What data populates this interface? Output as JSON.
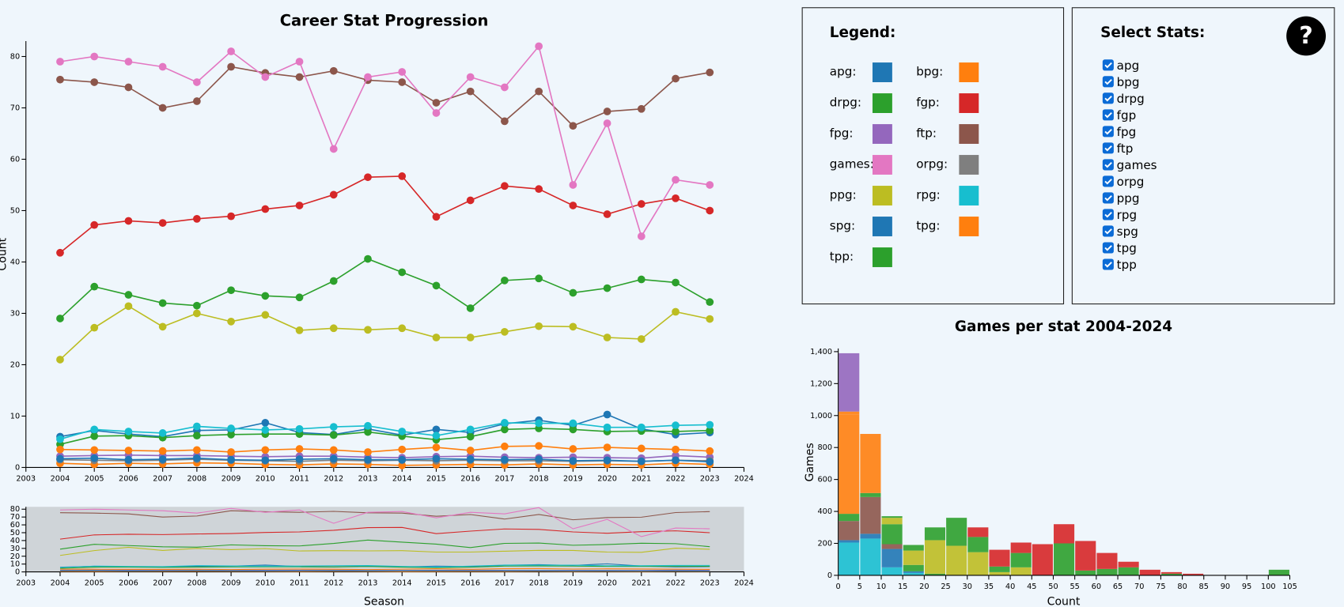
{
  "chart_data": [
    {
      "type": "line",
      "title": "Career Stat Progression",
      "y_label": "Count",
      "xlim": [
        2003,
        2024
      ],
      "xticks": [
        2003,
        2004,
        2005,
        2006,
        2007,
        2008,
        2009,
        2010,
        2011,
        2012,
        2013,
        2014,
        2015,
        2016,
        2017,
        2018,
        2019,
        2020,
        2021,
        2022,
        2023,
        2024
      ],
      "ylim": [
        0,
        83
      ],
      "yticks": [
        0,
        10,
        20,
        30,
        40,
        50,
        60,
        70,
        80
      ],
      "x": [
        2004,
        2005,
        2006,
        2007,
        2008,
        2009,
        2010,
        2011,
        2012,
        2013,
        2014,
        2015,
        2016,
        2017,
        2018,
        2019,
        2020,
        2021,
        2022,
        2023
      ],
      "series": [
        {
          "name": "apg",
          "color": "#1f77b4",
          "values": [
            6,
            7.2,
            6.5,
            6,
            7.2,
            7.3,
            8.7,
            6.8,
            6.4,
            7.5,
            6.3,
            7.4,
            6.8,
            8.5,
            9.2,
            8.2,
            10.3,
            7.5,
            6.4,
            6.8
          ]
        },
        {
          "name": "bpg",
          "color": "#ff7f0e",
          "values": [
            0.8,
            0.6,
            0.8,
            0.7,
            0.9,
            0.8,
            0.6,
            0.5,
            0.7,
            0.6,
            0.4,
            0.5,
            0.6,
            0.5,
            0.7,
            0.5,
            0.6,
            0.5,
            0.8,
            0.6
          ]
        },
        {
          "name": "drpg",
          "color": "#2ca02c",
          "values": [
            4.5,
            6.1,
            6.2,
            5.8,
            6.2,
            6.4,
            6.5,
            6.5,
            6.3,
            6.9,
            6.1,
            5.4,
            6,
            7.4,
            7.6,
            7.4,
            7,
            7.1,
            7,
            7.2
          ]
        },
        {
          "name": "fgp",
          "color": "#d62728",
          "values": [
            41.8,
            47.2,
            48,
            47.6,
            48.4,
            48.9,
            50.3,
            51,
            53.1,
            56.5,
            56.7,
            48.8,
            52,
            54.8,
            54.2,
            51,
            49.3,
            51.3,
            52.4,
            50
          ]
        },
        {
          "name": "fpg",
          "color": "#9467bd",
          "values": [
            2.2,
            2.3,
            2.4,
            2.3,
            2.3,
            2.2,
            2.1,
            2.2,
            2.2,
            2,
            1.9,
            2.1,
            2.2,
            2,
            1.9,
            2,
            1.9,
            1.8,
            2.3,
            2
          ]
        },
        {
          "name": "ftp",
          "color": "#8c564b",
          "values": [
            75.5,
            75,
            74,
            70,
            71.3,
            78,
            76.8,
            76,
            77.2,
            75.4,
            75,
            71,
            73.2,
            67.4,
            73.2,
            66.5,
            69.3,
            69.8,
            75.7,
            76.9
          ]
        },
        {
          "name": "games",
          "color": "#e377c2",
          "values": [
            79,
            80,
            79,
            78,
            75,
            81,
            76,
            79,
            62,
            76,
            77,
            69,
            76,
            74,
            82,
            55,
            67,
            45,
            56,
            55
          ]
        },
        {
          "name": "orpg",
          "color": "#7f7f7f",
          "values": [
            1.5,
            1.4,
            1.3,
            1.4,
            1.6,
            1.4,
            1.3,
            1.2,
            1.4,
            1.3,
            1.4,
            1.3,
            1.4,
            1.3,
            1.3,
            1.2,
            1.3,
            1.2,
            1.4,
            1.3
          ]
        },
        {
          "name": "ppg",
          "color": "#bcbd22",
          "values": [
            21,
            27.2,
            31.4,
            27.4,
            30,
            28.4,
            29.7,
            26.7,
            27.1,
            26.8,
            27.1,
            25.3,
            25.3,
            26.4,
            27.5,
            27.4,
            25.3,
            25,
            30.3,
            28.9
          ]
        },
        {
          "name": "rpg",
          "color": "#17becf",
          "values": [
            5.5,
            7.4,
            7,
            6.7,
            8,
            7.6,
            7.3,
            7.5,
            7.9,
            8.1,
            7,
            6.2,
            7.4,
            8.7,
            8.6,
            8.6,
            7.8,
            7.8,
            8.2,
            8.3
          ]
        },
        {
          "name": "spg",
          "color": "#1f77b4",
          "values": [
            1.7,
            1.8,
            1.5,
            1.6,
            1.8,
            1.5,
            1.4,
            1.6,
            1.7,
            1.5,
            1.5,
            1.7,
            1.6,
            1.5,
            1.6,
            1.3,
            1.4,
            1.2,
            1.4,
            1.1
          ]
        },
        {
          "name": "tpg",
          "color": "#ff7f0e",
          "values": [
            3.5,
            3.4,
            3.3,
            3.2,
            3.4,
            3,
            3.4,
            3.6,
            3.4,
            3,
            3.5,
            3.9,
            3.3,
            4.1,
            4.2,
            3.6,
            3.9,
            3.7,
            3.5,
            3.2
          ]
        },
        {
          "name": "tpp",
          "color": "#2ca02c",
          "values": [
            29,
            35.2,
            33.6,
            32,
            31.5,
            34.5,
            33.4,
            33.1,
            36.3,
            40.6,
            38,
            35.4,
            31,
            36.4,
            36.8,
            34,
            34.9,
            36.6,
            36,
            32.2
          ]
        }
      ]
    },
    {
      "type": "line",
      "x_label": "Season",
      "xlim": [
        2003,
        2024
      ],
      "xticks": [
        2003,
        2004,
        2005,
        2006,
        2007,
        2008,
        2009,
        2010,
        2011,
        2012,
        2013,
        2014,
        2015,
        2016,
        2017,
        2018,
        2019,
        2020,
        2021,
        2022,
        2023,
        2024
      ],
      "ylim": [
        0,
        83
      ],
      "yticks": [
        0,
        10,
        20,
        30,
        40,
        50,
        60,
        70,
        80
      ]
    },
    {
      "type": "histogram",
      "title": "Games per stat 2004-2024",
      "x_label": "Count",
      "y_label": "Games",
      "bins": [
        0,
        5,
        10,
        15,
        20,
        25,
        30,
        35,
        40,
        45,
        50,
        55,
        60,
        65,
        70,
        75,
        80,
        85,
        90,
        95,
        100,
        105
      ],
      "xlim": [
        0,
        105
      ],
      "xticks": [
        0,
        5,
        10,
        15,
        20,
        25,
        30,
        35,
        40,
        45,
        50,
        55,
        60,
        65,
        70,
        75,
        80,
        85,
        90,
        95,
        100,
        105
      ],
      "ylim": [
        0,
        1420
      ],
      "yticks": [
        0,
        200,
        400,
        600,
        800,
        {
          "value": 1000,
          "label": "1,000"
        },
        {
          "value": 1200,
          "label": "1,200"
        },
        {
          "value": 1400,
          "label": "1,400"
        }
      ],
      "series": [
        {
          "name": "rpg",
          "color": "#17becf",
          "values": [
            205,
            230,
            50,
            15,
            0,
            0,
            0,
            0,
            0,
            0,
            0,
            0,
            0,
            0,
            0,
            0,
            0,
            0,
            0,
            0,
            0
          ]
        },
        {
          "name": "apg",
          "color": "#1f77b4",
          "values": [
            15,
            30,
            115,
            10,
            0,
            0,
            0,
            0,
            0,
            0,
            0,
            0,
            0,
            0,
            0,
            0,
            0,
            0,
            0,
            0,
            0
          ]
        },
        {
          "name": "orpg",
          "color": "#8c564b",
          "values": [
            120,
            230,
            30,
            0,
            0,
            0,
            0,
            0,
            0,
            0,
            0,
            0,
            0,
            0,
            0,
            0,
            0,
            0,
            0,
            0,
            0
          ]
        },
        {
          "name": "drpg",
          "color": "#2ca02c",
          "values": [
            45,
            25,
            125,
            40,
            10,
            0,
            0,
            0,
            0,
            0,
            0,
            0,
            0,
            0,
            0,
            0,
            0,
            0,
            0,
            0,
            0
          ]
        },
        {
          "name": "bpg",
          "color": "#ff7f0e",
          "values": [
            620,
            0,
            0,
            0,
            0,
            0,
            0,
            0,
            0,
            0,
            0,
            0,
            0,
            0,
            0,
            0,
            0,
            0,
            0,
            0,
            0
          ]
        },
        {
          "name": "tpg",
          "color": "#ff7f0e",
          "values": [
            20,
            370,
            0,
            0,
            0,
            0,
            0,
            0,
            0,
            0,
            0,
            0,
            0,
            0,
            0,
            0,
            0,
            0,
            0,
            0,
            0
          ]
        },
        {
          "name": "fpg",
          "color": "#9467bd",
          "values": [
            365,
            0,
            0,
            0,
            0,
            0,
            0,
            0,
            0,
            0,
            0,
            0,
            0,
            0,
            0,
            0,
            0,
            0,
            0,
            0,
            0
          ]
        },
        {
          "name": "ppg",
          "color": "#bcbd22",
          "values": [
            0,
            0,
            40,
            90,
            210,
            185,
            145,
            20,
            50,
            0,
            0,
            0,
            0,
            0,
            0,
            0,
            0,
            0,
            0,
            0,
            0
          ]
        },
        {
          "name": "tpp",
          "color": "#2ca02c",
          "values": [
            0,
            0,
            10,
            35,
            80,
            175,
            95,
            35,
            90,
            0,
            200,
            30,
            40,
            50,
            0,
            10,
            0,
            0,
            0,
            0,
            35
          ]
        },
        {
          "name": "fgp",
          "color": "#d62728",
          "values": [
            0,
            0,
            0,
            0,
            0,
            0,
            60,
            105,
            65,
            195,
            120,
            185,
            100,
            35,
            35,
            10,
            10,
            0,
            0,
            0,
            0
          ]
        }
      ]
    }
  ],
  "legend": {
    "title": "Legend:",
    "items": [
      "apg:",
      "bpg:",
      "drpg:",
      "fgp:",
      "fpg:",
      "ftp:",
      "games:",
      "orpg:",
      "ppg:",
      "rpg:",
      "spg:",
      "tpg:",
      "tpp:"
    ]
  },
  "controls": {
    "title": "Select Stats:",
    "options": [
      "apg",
      "bpg",
      "drpg",
      "fgp",
      "fpg",
      "ftp",
      "games",
      "orpg",
      "ppg",
      "rpg",
      "spg",
      "tpg",
      "tpp"
    ],
    "checked": [
      true,
      true,
      true,
      true,
      true,
      true,
      true,
      true,
      true,
      true,
      true,
      true,
      true
    ]
  },
  "help": {
    "label": "?"
  }
}
